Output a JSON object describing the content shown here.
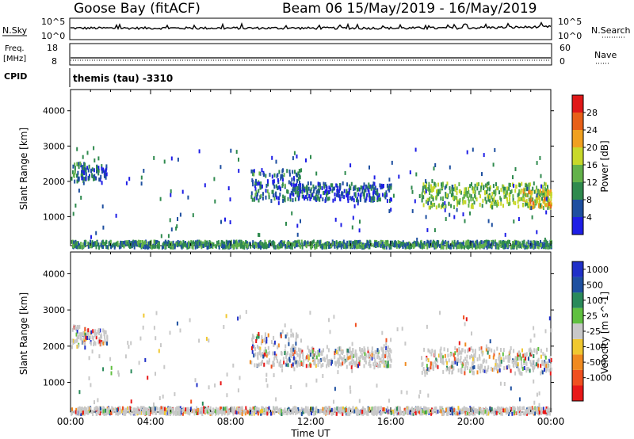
{
  "header": {
    "title": "Goose Bay (fitACF)",
    "beam_date": "Beam 06  15/May/2019 - 16/May/2019",
    "cpid_text": "themis (tau) -3310"
  },
  "labels": {
    "nsky": "N.Sky",
    "nsky_top": "10^5",
    "nsky_bottom": "10^0",
    "nsearch": "N.Search",
    "nsearch_top": "10^5",
    "nsearch_bottom": "10^0",
    "freq_line1": "Freq.",
    "freq_line2": "[MHz]",
    "freq_top": "18",
    "freq_bottom": "8",
    "nave": "Nave",
    "nave_top": "60",
    "nave_bottom": "0",
    "cpid": "CPID"
  },
  "colors": {
    "power": [
      "#1e1ee6",
      "#1e4fa0",
      "#2f8a4e",
      "#63b24a",
      "#c8d82a",
      "#f0a020",
      "#e86018",
      "#e01818"
    ],
    "velocity": [
      "#e81818",
      "#f05020",
      "#f08a20",
      "#f0c830",
      "#c8c8c8",
      "#60c040",
      "#2a8a5a",
      "#1e50a0",
      "#2030c8"
    ],
    "axis": "#000000"
  },
  "chart_data": [
    {
      "type": "heatmap",
      "name": "power",
      "ylabel": "Slant Range [km]",
      "xlabel": "",
      "ylim": [
        180,
        4600
      ],
      "xlim": [
        0,
        24
      ],
      "y_ticks": [
        "1000",
        "2000",
        "3000",
        "4000"
      ],
      "colorbar_label": "Power [dB]",
      "colorbar_ticks": [
        "4",
        "8",
        "12",
        "16",
        "20",
        "24",
        "28"
      ],
      "colorbar_range": [
        0,
        32
      ],
      "echo_regions": [
        {
          "t0": 0.0,
          "t1": 0.7,
          "r0": 2000,
          "r1": 2600,
          "value": 10
        },
        {
          "t0": 0.5,
          "t1": 1.8,
          "r0": 2100,
          "r1": 2500,
          "value": 6
        },
        {
          "t0": 9.0,
          "t1": 11.5,
          "r0": 1500,
          "r1": 2400,
          "value": 7
        },
        {
          "t0": 11.0,
          "t1": 16.0,
          "r0": 1500,
          "r1": 2000,
          "value": 6
        },
        {
          "t0": 17.5,
          "t1": 24.0,
          "r0": 1300,
          "r1": 2000,
          "value": 14
        },
        {
          "t0": 22.5,
          "t1": 24.0,
          "r0": 1300,
          "r1": 1800,
          "value": 20
        },
        {
          "t0": 0.0,
          "t1": 24.0,
          "r0": 180,
          "r1": 350,
          "value": 10
        }
      ]
    },
    {
      "type": "heatmap",
      "name": "velocity",
      "ylabel": "Slant Range [km]",
      "xlabel": "Time UT",
      "ylim": [
        180,
        4600
      ],
      "xlim": [
        0,
        24
      ],
      "x_ticks": [
        "00:00",
        "04:00",
        "08:00",
        "12:00",
        "16:00",
        "20:00",
        "00:00"
      ],
      "y_ticks": [
        "1000",
        "2000",
        "3000",
        "4000"
      ],
      "colorbar_label": "Velocity [m s^-1]",
      "colorbar_ticks": [
        "1000",
        "500",
        "100",
        "25",
        "-25",
        "-100",
        "-500",
        "-1000"
      ],
      "echo_regions": [
        {
          "t0": 0.0,
          "t1": 0.7,
          "r0": 2000,
          "r1": 2600,
          "value": 0
        },
        {
          "t0": 0.5,
          "t1": 1.8,
          "r0": 2100,
          "r1": 2500,
          "value": 0
        },
        {
          "t0": 9.0,
          "t1": 11.5,
          "r0": 1500,
          "r1": 2400,
          "value": 0
        },
        {
          "t0": 11.0,
          "t1": 16.0,
          "r0": 1500,
          "r1": 2000,
          "value": 0
        },
        {
          "t0": 17.5,
          "t1": 24.0,
          "r0": 1300,
          "r1": 2000,
          "value": 0
        },
        {
          "t0": 0.0,
          "t1": 24.0,
          "r0": 180,
          "r1": 350,
          "value": 0
        }
      ]
    }
  ]
}
